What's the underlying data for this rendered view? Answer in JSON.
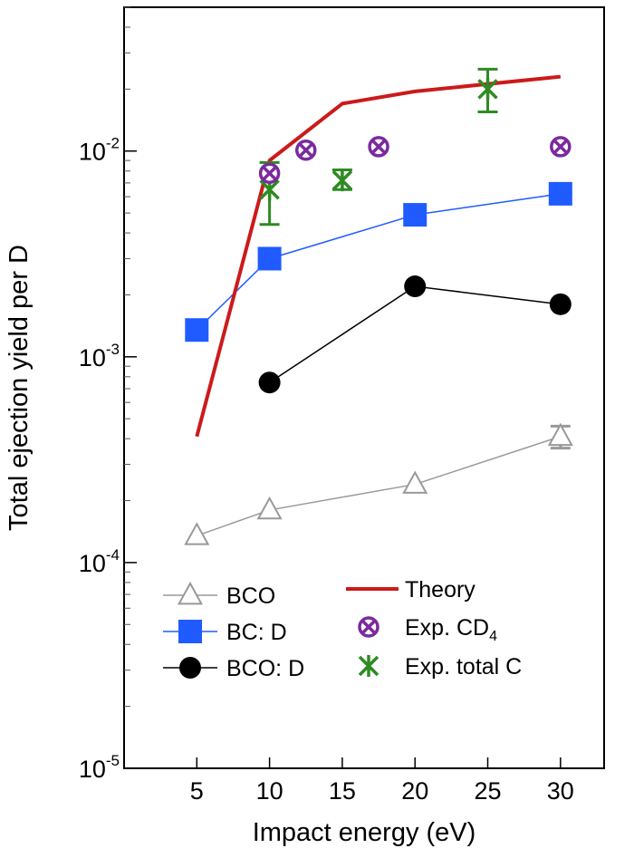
{
  "chart_data": {
    "type": "line",
    "xlabel": "Impact energy (eV)",
    "ylabel": "Total ejection yield per D",
    "xlim": [
      0,
      33
    ],
    "ylim": [
      1e-05,
      0.05
    ],
    "yscale": "log",
    "x_ticks": [
      {
        "value": 5,
        "label": "5"
      },
      {
        "value": 10,
        "label": "10"
      },
      {
        "value": 15,
        "label": "15"
      },
      {
        "value": 20,
        "label": "20"
      },
      {
        "value": 25,
        "label": "25"
      },
      {
        "value": 30,
        "label": "30"
      }
    ],
    "y_ticks": [
      {
        "value": 1e-05,
        "base": "10",
        "exp": "-5"
      },
      {
        "value": 0.0001,
        "base": "10",
        "exp": "-4"
      },
      {
        "value": 0.001,
        "base": "10",
        "exp": "-3"
      },
      {
        "value": 0.01,
        "base": "10",
        "exp": "-2"
      }
    ],
    "grid": false,
    "legend_position": "bottom-left",
    "series": [
      {
        "key": "bco",
        "name": "BCO",
        "color": "#999999",
        "marker": "open-triangle",
        "x": [
          5,
          10,
          20,
          30
        ],
        "y": [
          0.000135,
          0.00018,
          0.00024,
          0.00041
        ],
        "error": [
          null,
          null,
          null,
          5e-05
        ]
      },
      {
        "key": "bcd",
        "name": "BC: D",
        "color": "#1f5bff",
        "marker": "filled-square",
        "x": [
          5,
          10,
          20,
          30
        ],
        "y": [
          0.00135,
          0.003,
          0.0049,
          0.0062
        ]
      },
      {
        "key": "bcod",
        "name": "BCO: D",
        "color": "#000000",
        "marker": "filled-circle",
        "x": [
          10,
          20,
          30
        ],
        "y": [
          0.00075,
          0.0022,
          0.0018
        ]
      },
      {
        "key": "theory",
        "name": "Theory",
        "color": "#cc1a1a",
        "marker": "none",
        "x": [
          5,
          10,
          15,
          20,
          30
        ],
        "y": [
          0.00041,
          0.009,
          0.017,
          0.0195,
          0.023
        ]
      },
      {
        "key": "cd4",
        "name_prefix": "Exp. CD",
        "name_sub": "4",
        "color": "#7b2a9e",
        "marker": "crossed-circle",
        "x": [
          10,
          12.5,
          17.5,
          30
        ],
        "y": [
          0.0078,
          0.0101,
          0.0105,
          0.0105
        ]
      },
      {
        "key": "totalc",
        "name": "Exp. total C",
        "color": "#2e8b22",
        "marker": "star",
        "x": [
          10,
          15,
          25
        ],
        "y": [
          0.0065,
          0.0072,
          0.02
        ],
        "error_low": [
          0.0044,
          0.0065,
          0.0155
        ],
        "error_high": [
          0.0088,
          0.0081,
          0.025
        ]
      }
    ]
  }
}
